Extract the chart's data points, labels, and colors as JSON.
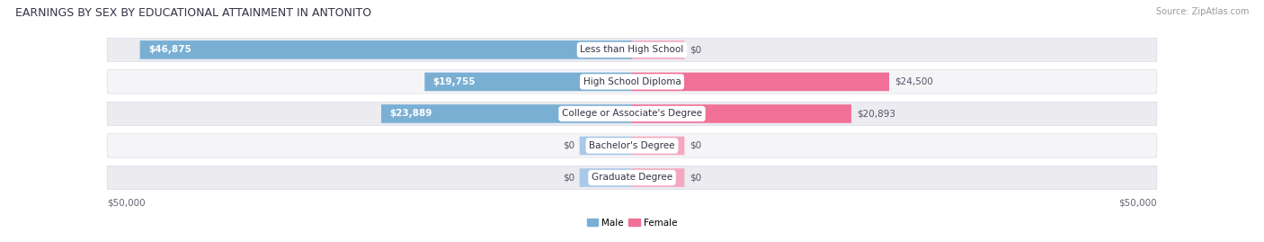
{
  "title": "EARNINGS BY SEX BY EDUCATIONAL ATTAINMENT IN ANTONITO",
  "source": "Source: ZipAtlas.com",
  "categories": [
    "Less than High School",
    "High School Diploma",
    "College or Associate's Degree",
    "Bachelor's Degree",
    "Graduate Degree"
  ],
  "male_values": [
    46875,
    19755,
    23889,
    0,
    0
  ],
  "female_values": [
    0,
    24500,
    20893,
    0,
    0
  ],
  "male_color": "#7aafd4",
  "female_color": "#f07098",
  "male_color_light": "#aac8e8",
  "female_color_light": "#f4a8c0",
  "row_bg_even": "#ebebf0",
  "row_bg_odd": "#f5f5f8",
  "max_value": 50000,
  "stub_value": 5000,
  "xlabel_left": "$50,000",
  "xlabel_right": "$50,000",
  "legend_male": "Male",
  "legend_female": "Female",
  "title_fontsize": 9,
  "source_fontsize": 7,
  "label_fontsize": 7.5,
  "cat_fontsize": 7.5,
  "tick_fontsize": 7.5
}
